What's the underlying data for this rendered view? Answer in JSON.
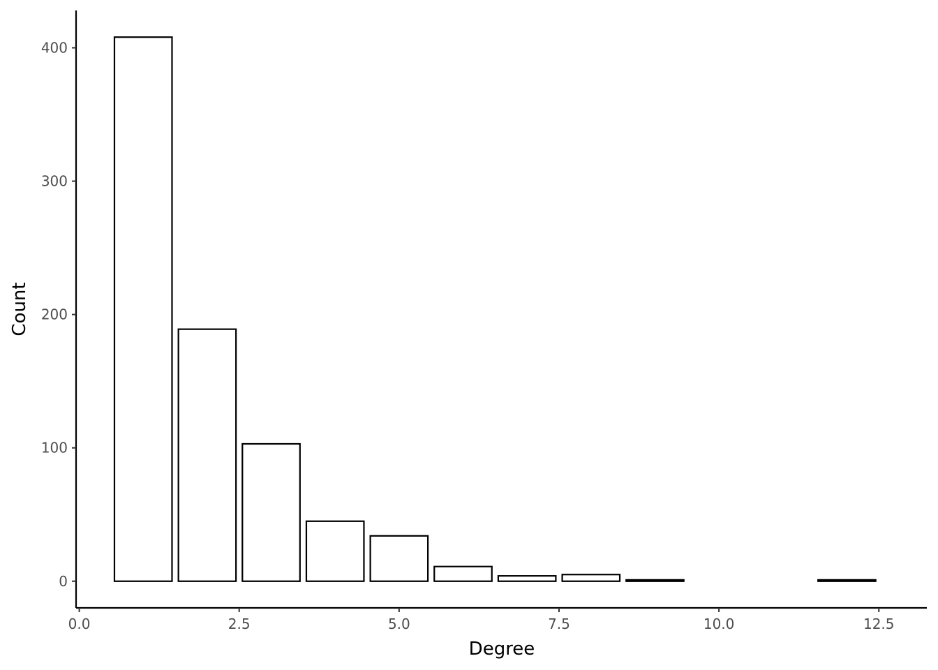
{
  "chart_data": {
    "type": "bar",
    "title": "",
    "xlabel": "Degree",
    "ylabel": "Count",
    "x": [
      1,
      2,
      3,
      4,
      5,
      6,
      7,
      8,
      9,
      12
    ],
    "values": [
      408,
      189,
      103,
      45,
      34,
      11,
      4,
      5,
      1,
      1
    ],
    "bar_width": 0.9,
    "xlim": [
      -0.05,
      13.25
    ],
    "ylim": [
      -20,
      428
    ],
    "xticks": [
      0,
      2.5,
      5,
      7.5,
      10,
      12.5
    ],
    "xtick_labels": [
      "0.0",
      "2.5",
      "5.0",
      "7.5",
      "10.0",
      "12.5"
    ],
    "yticks": [
      0,
      100,
      200,
      300,
      400
    ],
    "ytick_labels": [
      "0",
      "100",
      "200",
      "300",
      "400"
    ],
    "grid": false,
    "legend": "none",
    "bar_fill": "#ffffff",
    "bar_stroke": "#000000"
  }
}
